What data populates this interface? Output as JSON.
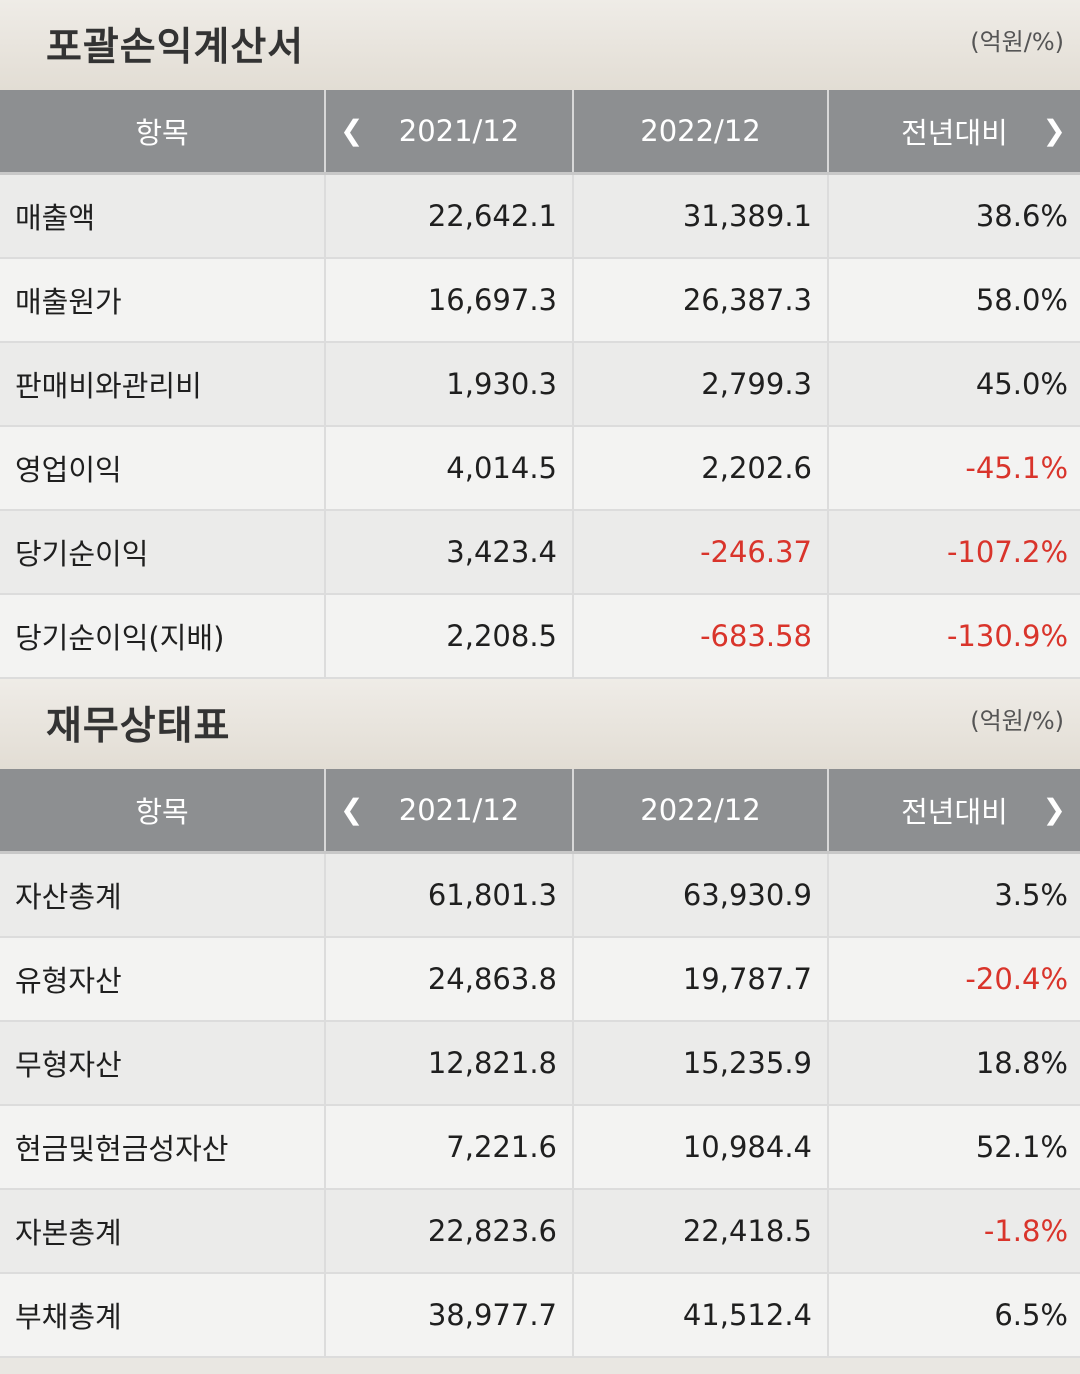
{
  "income": {
    "title": "포괄손익계산서",
    "unit": "(억원/%)",
    "headers": [
      "항목",
      "2021/12",
      "2022/12",
      "전년대비"
    ],
    "rows": [
      {
        "label": "매출액",
        "v2021": "22,642.1",
        "v2022": "31,389.1",
        "yoy": "38.6%"
      },
      {
        "label": "매출원가",
        "v2021": "16,697.3",
        "v2022": "26,387.3",
        "yoy": "58.0%"
      },
      {
        "label": "판매비와관리비",
        "v2021": "1,930.3",
        "v2022": "2,799.3",
        "yoy": "45.0%"
      },
      {
        "label": "영업이익",
        "v2021": "4,014.5",
        "v2022": "2,202.6",
        "yoy": "-45.1%"
      },
      {
        "label": "당기순이익",
        "v2021": "3,423.4",
        "v2022": "-246.37",
        "yoy": "-107.2%"
      },
      {
        "label": "당기순이익(지배)",
        "v2021": "2,208.5",
        "v2022": "-683.58",
        "yoy": "-130.9%"
      }
    ]
  },
  "balance": {
    "title": "재무상태표",
    "unit": "(억원/%)",
    "headers": [
      "항목",
      "2021/12",
      "2022/12",
      "전년대비"
    ],
    "rows": [
      {
        "label": "자산총계",
        "v2021": "61,801.3",
        "v2022": "63,930.9",
        "yoy": "3.5%"
      },
      {
        "label": "유형자산",
        "v2021": "24,863.8",
        "v2022": "19,787.7",
        "yoy": "-20.4%"
      },
      {
        "label": "무형자산",
        "v2021": "12,821.8",
        "v2022": "15,235.9",
        "yoy": "18.8%"
      },
      {
        "label": "현금및현금성자산",
        "v2021": "7,221.6",
        "v2022": "10,984.4",
        "yoy": "52.1%"
      },
      {
        "label": "자본총계",
        "v2021": "22,823.6",
        "v2022": "22,418.5",
        "yoy": "-1.8%"
      },
      {
        "label": "부채총계",
        "v2021": "38,977.7",
        "v2022": "41,512.4",
        "yoy": "6.5%"
      }
    ]
  },
  "icons": {
    "prev": "chevron-left-icon",
    "next": "chevron-right-icon"
  },
  "colors": {
    "negative": "#d9342b",
    "header_bg": "#8d8f91"
  }
}
